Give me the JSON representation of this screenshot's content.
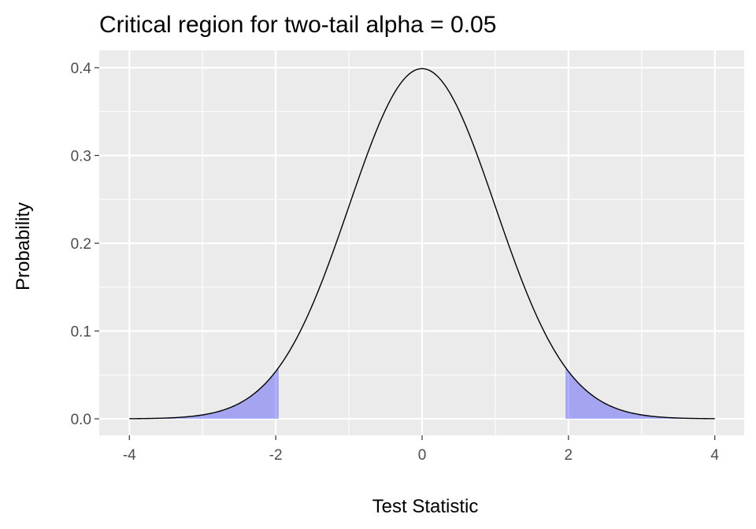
{
  "chart_data": {
    "type": "area",
    "title": "Critical region for two-tail alpha = 0.05",
    "xlabel": "Test Statistic",
    "ylabel": "Probability",
    "xlim": [
      -4,
      4
    ],
    "ylim": [
      0,
      0.4
    ],
    "x_ticks": [
      -4,
      -2,
      0,
      2,
      4
    ],
    "x_tick_labels": [
      "-4",
      "-2",
      "0",
      "2",
      "4"
    ],
    "y_ticks": [
      0.0,
      0.1,
      0.2,
      0.3,
      0.4
    ],
    "y_tick_labels": [
      "0.0",
      "0.1",
      "0.2",
      "0.3",
      "0.4"
    ],
    "grid": true,
    "curve": {
      "distribution": "standard normal density",
      "x_range": [
        -4,
        4
      ],
      "color": "#000000"
    },
    "shaded_regions": [
      {
        "x_from": -4,
        "x_to": -1.96
      },
      {
        "x_from": 1.96,
        "x_to": 4
      }
    ],
    "shade_color": "#0000ff",
    "shade_opacity": 0.3,
    "panel_background": "#ebebeb",
    "grid_color": "#ffffff"
  }
}
